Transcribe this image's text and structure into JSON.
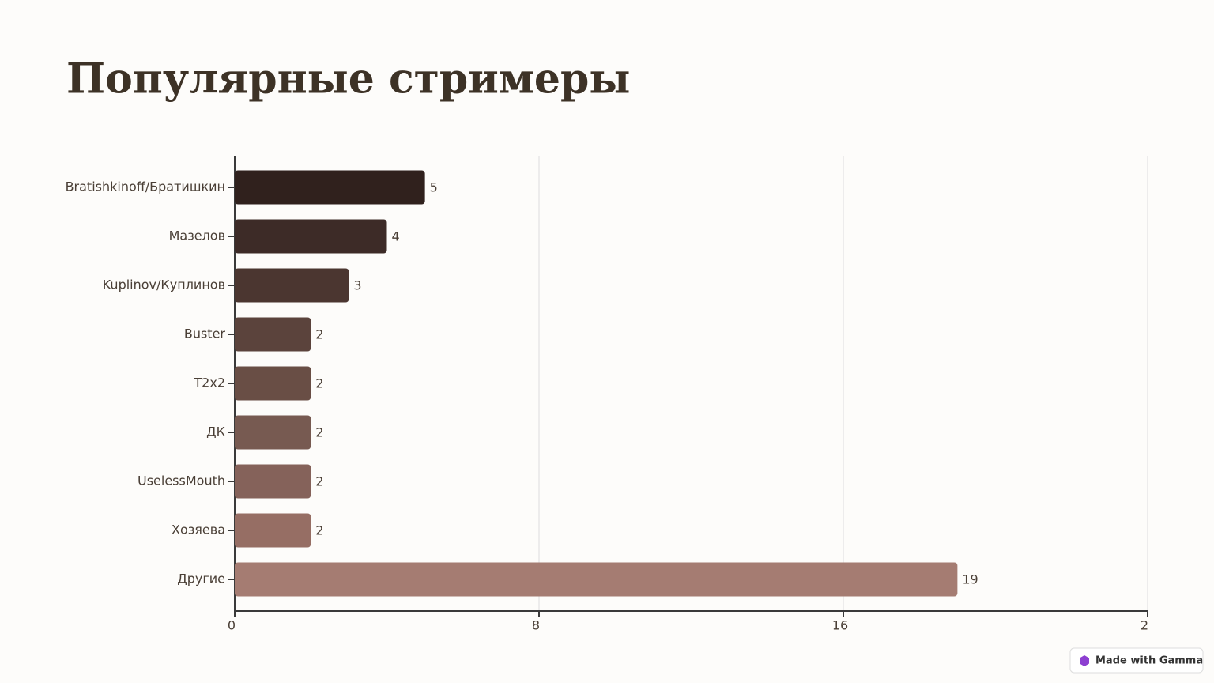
{
  "chart_data": {
    "type": "bar",
    "orientation": "horizontal",
    "title": "Популярные стримеры",
    "categories": [
      "Bratishkinoff/Братишкин",
      "Мазелов",
      "Kuplinov/Куплинов",
      "Buster",
      "T2x2",
      "ДК",
      "UselessMouth",
      "Хозяева",
      "Другие"
    ],
    "values": [
      5,
      4,
      3,
      2,
      2,
      2,
      2,
      2,
      19
    ],
    "colors": [
      "#30211d",
      "#3d2b27",
      "#4b3630",
      "#5b433c",
      "#694e45",
      "#775a51",
      "#85625a",
      "#966e64",
      "#a57c72"
    ],
    "xlim": [
      0,
      24
    ],
    "xticks": [
      0,
      8,
      16,
      {
        "value": 24,
        "label": "2"
      }
    ],
    "grid": true
  },
  "badge": "Made with Gamma"
}
